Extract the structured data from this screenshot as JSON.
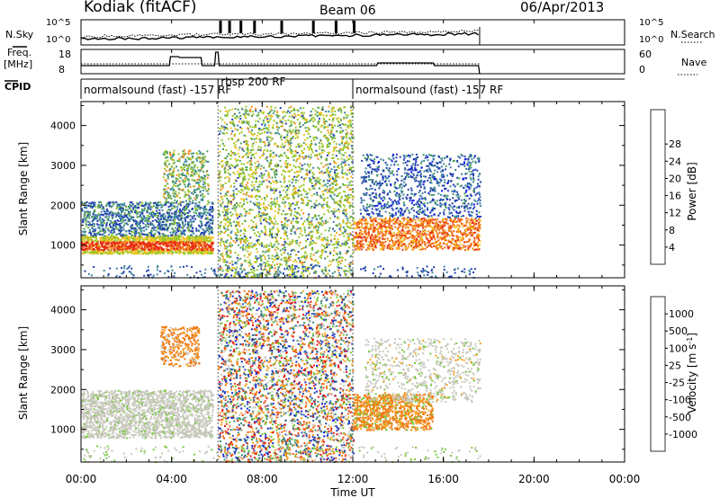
{
  "header": {
    "station": "Kodiak (fitACF)",
    "beam": "Beam 06",
    "date": "06/Apr/2013"
  },
  "params": {
    "nsky_label": "N.Sky",
    "nsearch_label": "N.Search",
    "noise_ticks": [
      "10^5",
      "10^0"
    ],
    "freq_label": "Freq.",
    "freq_unit": "[MHz]",
    "freq_ticks": [
      "18",
      "8"
    ],
    "nave_label": "Nave",
    "nave_ticks": [
      "60",
      "0"
    ],
    "cpid_label": "CPID",
    "cpid_segments": [
      {
        "start": 0,
        "end": 6.05,
        "label": "normalsound (fast) -157 RF"
      },
      {
        "start": 6.05,
        "end": 12.0,
        "label": "rbsp 200 RF"
      },
      {
        "start": 12.0,
        "end": 17.6,
        "label": "normalsound (fast) -157 RF"
      }
    ]
  },
  "x_axis": {
    "label": "Time UT",
    "ticks": [
      "00:00",
      "04:00",
      "08:00",
      "12:00",
      "16:00",
      "20:00",
      "00:00"
    ],
    "range_hours": [
      0,
      24
    ]
  },
  "y_axis": {
    "label": "Slant Range [km]",
    "ticks": [
      "1000",
      "2000",
      "3000",
      "4000"
    ],
    "range_km": [
      180,
      4600
    ]
  },
  "power_scale": {
    "label": "Power [dB]",
    "ticks": [
      "4",
      "8",
      "12",
      "16",
      "20",
      "24",
      "28"
    ],
    "colors": [
      "#0a14e6",
      "#2340b0",
      "#3f86a0",
      "#4fa060",
      "#9ac82a",
      "#f5c21e",
      "#f58a1e",
      "#f06010",
      "#e62a10"
    ]
  },
  "velocity_scale": {
    "label": "Velocity [m s^-1]",
    "ticks": [
      "1000",
      "500",
      "100",
      "25",
      "-25",
      "-100",
      "-500",
      "-1000"
    ],
    "colors": [
      "#1428c8",
      "#2d55b0",
      "#3d8c6e",
      "#78c83c",
      "#c8c8be",
      "#f5a01e",
      "#f07814",
      "#f04614",
      "#e61414"
    ]
  },
  "chart_data": {
    "type": "heatmap",
    "panels": [
      "power",
      "velocity"
    ],
    "x_range_hours": [
      0,
      24
    ],
    "y_range_km": [
      180,
      4600
    ],
    "data_end_hours": 17.6,
    "power_regions": [
      {
        "t0": 0.0,
        "t1": 5.8,
        "r0": 800,
        "r1": 1250,
        "value_db": 24
      },
      {
        "t0": 0.0,
        "t1": 5.8,
        "r0": 1250,
        "r1": 2100,
        "value_db": 10
      },
      {
        "t0": 4.0,
        "t1": 5.5,
        "r0": 2300,
        "r1": 3300,
        "value_db": 14
      },
      {
        "t0": 6.05,
        "t1": 12.0,
        "r0": 200,
        "r1": 4500,
        "value_db": 14
      },
      {
        "t0": 12.0,
        "t1": 17.6,
        "r0": 900,
        "r1": 1700,
        "value_db": 22
      },
      {
        "t0": 12.3,
        "t1": 17.6,
        "r0": 1700,
        "r1": 3300,
        "value_db": 9
      }
    ],
    "velocity_regions": [
      {
        "t0": 0.0,
        "t1": 5.8,
        "r0": 800,
        "r1": 2000,
        "value_ms": 0
      },
      {
        "t0": 3.5,
        "t1": 5.2,
        "r0": 2700,
        "r1": 3600,
        "value_ms": -300
      },
      {
        "t0": 6.05,
        "t1": 12.0,
        "r0": 200,
        "r1": 4500,
        "value_ms": "mixed"
      },
      {
        "t0": 12.0,
        "t1": 15.5,
        "r0": 1000,
        "r1": 1900,
        "value_ms": -250
      },
      {
        "t0": 12.5,
        "t1": 17.6,
        "r0": 1700,
        "r1": 3300,
        "value_ms": 0
      }
    ]
  }
}
